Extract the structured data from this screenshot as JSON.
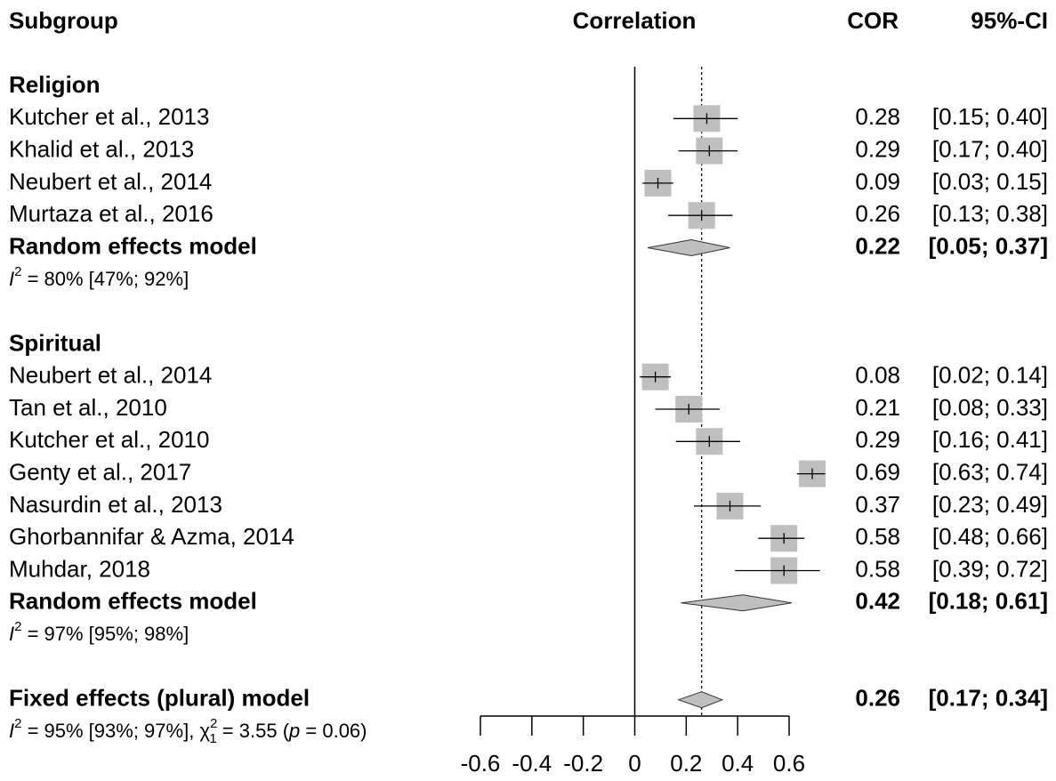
{
  "chart_data": {
    "type": "forest",
    "headers": {
      "subgroup": "Subgroup",
      "effect": "Correlation",
      "cor": "COR",
      "ci": "95%-CI"
    },
    "xlim": [
      -0.6,
      0.6
    ],
    "xticks": [
      -0.6,
      -0.4,
      -0.2,
      0,
      0.2,
      0.4,
      0.6
    ],
    "box_color": "#bfbfbf",
    "diamond_color": "#bfbfbf",
    "groups": [
      {
        "name": "Religion",
        "studies": [
          {
            "name": "Kutcher et al., 2013",
            "cor": 0.28,
            "lower": 0.15,
            "upper": 0.4,
            "ci_label": "[0.15; 0.40]"
          },
          {
            "name": "Khalid et al., 2013",
            "cor": 0.29,
            "lower": 0.17,
            "upper": 0.4,
            "ci_label": "[0.17; 0.40]"
          },
          {
            "name": "Neubert et al., 2014",
            "cor": 0.09,
            "lower": 0.03,
            "upper": 0.15,
            "ci_label": "[0.03; 0.15]"
          },
          {
            "name": "Murtaza et al., 2016",
            "cor": 0.26,
            "lower": 0.13,
            "upper": 0.38,
            "ci_label": "[0.13; 0.38]"
          }
        ],
        "pooled": {
          "name": "Random effects model",
          "cor": 0.22,
          "lower": 0.05,
          "upper": 0.37,
          "ci_label": "[0.05; 0.37]",
          "het": {
            "symbol": "I",
            "sup": "2",
            "text": " = 80% [47%; 92%]"
          }
        }
      },
      {
        "name": "Spiritual",
        "studies": [
          {
            "name": "Neubert et al., 2014",
            "cor": 0.08,
            "lower": 0.02,
            "upper": 0.14,
            "ci_label": "[0.02; 0.14]"
          },
          {
            "name": "Tan et al., 2010",
            "cor": 0.21,
            "lower": 0.08,
            "upper": 0.33,
            "ci_label": "[0.08; 0.33]"
          },
          {
            "name": "Kutcher et al., 2010",
            "cor": 0.29,
            "lower": 0.16,
            "upper": 0.41,
            "ci_label": "[0.16; 0.41]"
          },
          {
            "name": "Genty et al., 2017",
            "cor": 0.69,
            "lower": 0.63,
            "upper": 0.74,
            "ci_label": "[0.63; 0.74]"
          },
          {
            "name": "Nasurdin et al., 2013",
            "cor": 0.37,
            "lower": 0.23,
            "upper": 0.49,
            "ci_label": "[0.23; 0.49]"
          },
          {
            "name": "Ghorbannifar & Azma, 2014",
            "cor": 0.58,
            "lower": 0.48,
            "upper": 0.66,
            "ci_label": "[0.48; 0.66]"
          },
          {
            "name": "Muhdar, 2018",
            "cor": 0.58,
            "lower": 0.39,
            "upper": 0.72,
            "ci_label": "[0.39; 0.72]"
          }
        ],
        "pooled": {
          "name": "Random effects model",
          "cor": 0.42,
          "lower": 0.18,
          "upper": 0.61,
          "ci_label": "[0.18; 0.61]",
          "het": {
            "symbol": "I",
            "sup": "2",
            "text": " = 97% [95%; 98%]"
          }
        }
      }
    ],
    "overall": {
      "name": "Fixed effects (plural) model",
      "cor": 0.26,
      "lower": 0.17,
      "upper": 0.34,
      "ci_label": "[0.17; 0.34]",
      "test": {
        "symbol": "I",
        "sup": "2",
        "text": " = 95% [93%; 97%], ",
        "chi": "χ",
        "chi_sup": "2",
        "chi_sub": "1",
        "stat": " = 3.55 (",
        "p": "p",
        "p_text": " = 0.06)"
      }
    }
  }
}
